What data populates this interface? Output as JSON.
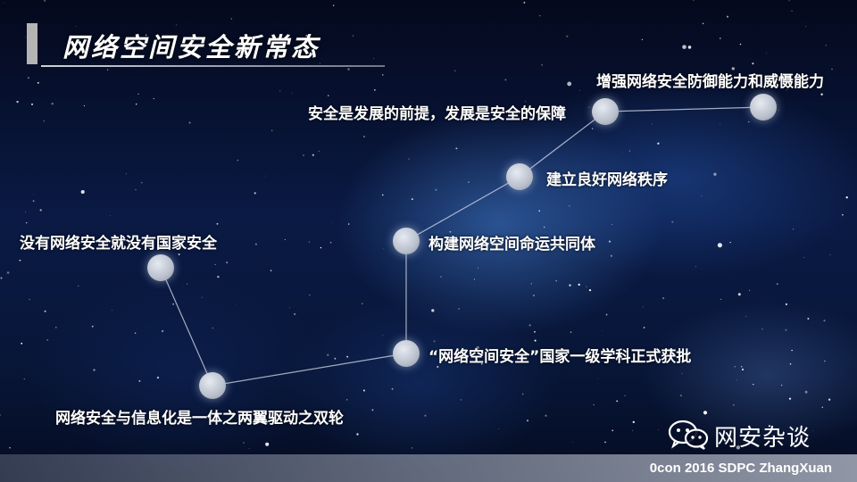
{
  "slide": {
    "title": "网络空间安全新常态",
    "nodes": [
      {
        "id": "n1",
        "label": "没有网络安全就没有国家安全"
      },
      {
        "id": "n2",
        "label": "网络安全与信息化是一体之两翼驱动之双轮"
      },
      {
        "id": "n3",
        "label": "“网络空间安全”国家一级学科正式获批"
      },
      {
        "id": "n4",
        "label": "构建网络空间命运共同体"
      },
      {
        "id": "n5",
        "label": "建立良好网络秩序"
      },
      {
        "id": "n6",
        "label": "安全是发展的前提，发展是安全的保障"
      },
      {
        "id": "n7",
        "label": "增强网络安全防御能力和威慑能力"
      }
    ],
    "footer_text": "0con 2016 SDPC ZhangXuan",
    "brand_name": "网安杂谈",
    "brand_icon": "wechat-icon"
  }
}
